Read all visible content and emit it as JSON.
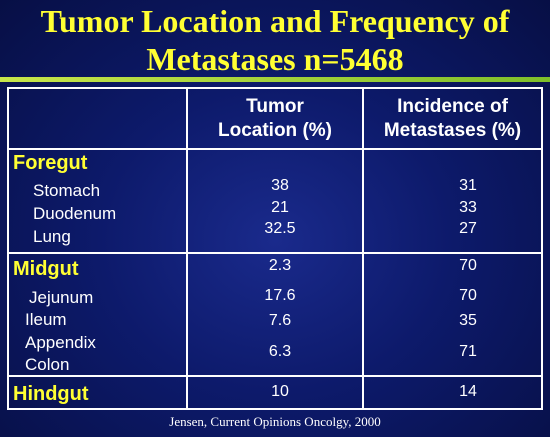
{
  "title": {
    "line1": "Tumor Location and Frequency of",
    "line2": "Metastases n=5468"
  },
  "table": {
    "header": {
      "col1_line1": "Tumor",
      "col1_line2": "Location (%)",
      "col2_line1": "Incidence of",
      "col2_line2": "Metastases (%)"
    },
    "foregut": {
      "label": "Foregut",
      "rows": [
        {
          "name": "Stomach",
          "location": "38",
          "metastases": "31"
        },
        {
          "name": "Duodenum",
          "location": "21",
          "metastases": "33"
        },
        {
          "name": "Lung",
          "location": "32.5",
          "metastases": "27"
        }
      ]
    },
    "midgut": {
      "label": "Midgut",
      "location": "2.3",
      "metastases": "70",
      "rows": [
        {
          "name": "Jejunum",
          "location": "17.6",
          "metastases": "70"
        },
        {
          "name": "Ileum",
          "location": "7.6",
          "metastases": "35"
        },
        {
          "name": "Appendix",
          "location": "",
          "metastases": ""
        },
        {
          "name": "Colon",
          "location": "6.3",
          "metastases": "71"
        }
      ]
    },
    "hindgut": {
      "label": "Hindgut",
      "location": "10",
      "metastases": "14"
    }
  },
  "source": "Jensen, Current Opinions Oncolgy, 2000"
}
